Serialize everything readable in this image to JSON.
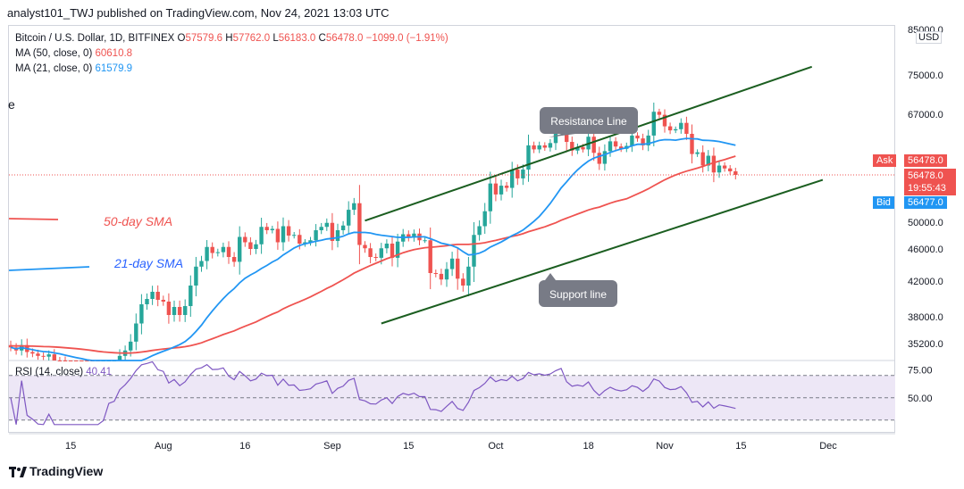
{
  "header": {
    "text": "analyst101_TWJ published on TradingView.com, Nov 24, 2021 13:03 UTC"
  },
  "legend": {
    "symbol": "Bitcoin / U.S. Dollar, 1D, BITFINEX",
    "open_label": "O",
    "open": "57579.6",
    "high_label": "H",
    "high": "57762.0",
    "low_label": "L",
    "low": "56183.0",
    "close_label": "C",
    "close": "56478.0",
    "change": "−1099.0 (−1.91%)",
    "ma50_label": "MA (50, close, 0)",
    "ma50_value": "60610.8",
    "ma21_label": "MA (21, close, 0)",
    "ma21_value": "61579.9",
    "rsi_label": "RSI (14, close)",
    "rsi_value": "40.41"
  },
  "axis": {
    "currency": "USD",
    "price_ticks": [
      "85000.0",
      "75000.0",
      "67000.0",
      "50000.0",
      "46000.0",
      "42000.0",
      "38000.0",
      "35200.0"
    ],
    "rsi_ticks": [
      "75.00",
      "50.00"
    ],
    "time_ticks": [
      "15",
      "Aug",
      "16",
      "Sep",
      "15",
      "Oct",
      "18",
      "Nov",
      "15",
      "Dec"
    ]
  },
  "badges": {
    "ask_label": "Ask",
    "ask_price": "56478.0",
    "last_price": "56478.0",
    "countdown": "19:55:43",
    "bid_label": "Bid",
    "bid_price": "56477.0"
  },
  "annotations": {
    "sma50": "50-day SMA",
    "sma21": "21-day SMA",
    "resistance": "Resistance Line",
    "support": "Support line",
    "edge": "e"
  },
  "footer": {
    "brand": "TradingView"
  },
  "colors": {
    "up": "#26a69a",
    "down": "#ef5350",
    "ma50": "#ef5350",
    "ma21": "#2196f3",
    "channel": "#1e5e3e",
    "rsi": "#7e57c2",
    "rsi_band": "#ede7f6"
  },
  "chart_data": {
    "type": "candlestick",
    "title": "Bitcoin / U.S. Dollar, 1D, BITFINEX",
    "x_range": [
      "2021-07-04",
      "2021-12-06"
    ],
    "ylim": [
      33000,
      86000
    ],
    "rsi_ylim": [
      25,
      85
    ],
    "candles_close": [
      34700,
      34300,
      35000,
      34100,
      33900,
      33600,
      33500,
      33800,
      33000,
      32800,
      31900,
      31800,
      31600,
      31400,
      30800,
      29800,
      29700,
      30800,
      32100,
      32300,
      33600,
      34300,
      35400,
      37300,
      39400,
      40000,
      40800,
      39900,
      39700,
      38200,
      39100,
      38200,
      39200,
      41500,
      43800,
      44500,
      46300,
      45500,
      45600,
      46300,
      45000,
      44400,
      47800,
      47000,
      46000,
      46700,
      49300,
      48800,
      49000,
      47000,
      49400,
      48000,
      48100,
      46800,
      47000,
      47300,
      48800,
      49300,
      49900,
      47200,
      48800,
      49500,
      51700,
      52600,
      46600,
      46100,
      45000,
      44900,
      46100,
      46800,
      44900,
      47100,
      48200,
      47700,
      48300,
      47300,
      47300,
      43000,
      42900,
      42200,
      43500,
      44800,
      42300,
      41500,
      43800,
      48100,
      49400,
      51500,
      55300,
      53800,
      55000,
      54700,
      57400,
      56000,
      57400,
      61600,
      60900,
      61600,
      61200,
      62000,
      64300,
      66000,
      62200,
      60700,
      61300,
      60900,
      63100,
      60300,
      58400,
      60600,
      62300,
      61400,
      61000,
      61500,
      63300,
      62800,
      61600,
      63300,
      67500,
      66900,
      64900,
      64200,
      64400,
      65500,
      63600,
      60100,
      60400,
      58100,
      59800,
      56900,
      58100,
      57600,
      57100,
      56478
    ],
    "ma50_first": 34900,
    "ma50_last": 60610.8,
    "ma21_last": 61579.9,
    "rsi_last": 40.41,
    "channel_resistance": [
      {
        "date": "2021-09-07",
        "price": 50200
      },
      {
        "date": "2021-11-28",
        "price": 76800
      }
    ],
    "channel_support": [
      {
        "date": "2021-09-10",
        "price": 37300
      },
      {
        "date": "2021-11-30",
        "price": 55800
      }
    ],
    "rsi_levels": [
      30,
      50,
      70
    ]
  }
}
